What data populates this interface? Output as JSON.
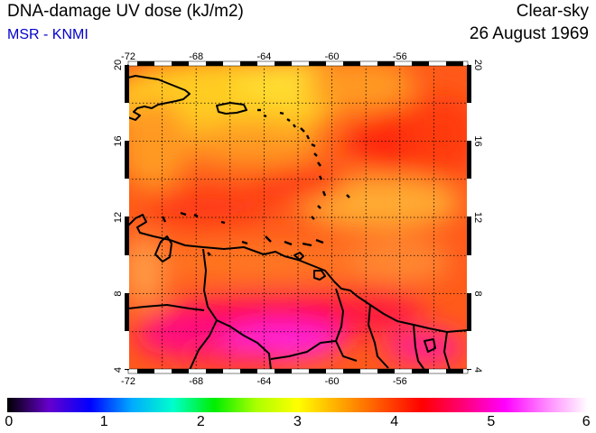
{
  "header": {
    "title": "DNA-damage UV dose (kJ/m2)",
    "source": "MSR - KNMI",
    "condition": "Clear-sky",
    "date": "26 August 1969"
  },
  "map": {
    "region": "Caribbean Sea",
    "lon_range": [
      -72,
      -52
    ],
    "lat_range": [
      4,
      20
    ],
    "lon_ticks": [
      "-72",
      "-68",
      "-64",
      "-60",
      "-56"
    ],
    "lat_ticks": [
      "20",
      "16",
      "12",
      "8",
      "4"
    ],
    "grid": "dotted, every 2 degrees",
    "field_min": 3.8,
    "field_max": 5.3
  },
  "colorbar": {
    "labels": [
      "0",
      "1",
      "2",
      "3",
      "4",
      "5",
      "6"
    ],
    "colors": [
      "#000000",
      "#6600cc",
      "#0000ff",
      "#00aaff",
      "#00ffcc",
      "#00ee00",
      "#aaff00",
      "#ffff00",
      "#ffaa00",
      "#ff5500",
      "#ff0000",
      "#ff0077",
      "#ff00ff",
      "#ff88ff",
      "#ffffff"
    ]
  }
}
